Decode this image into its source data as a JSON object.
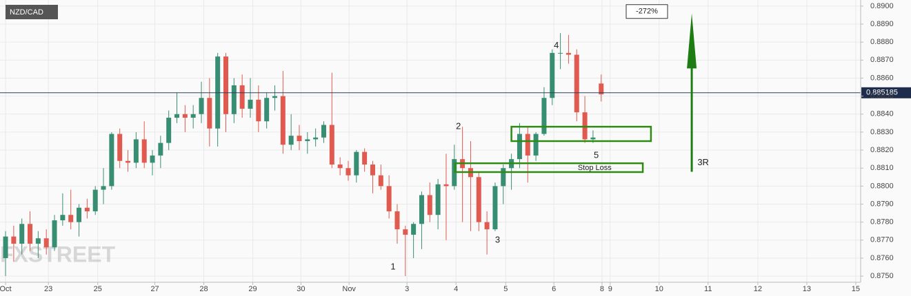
{
  "chart_data": {
    "type": "candlestick",
    "title": "NZD/CAD",
    "watermark": "FXSTREET",
    "up_color": "#388e73",
    "down_color": "#e05a4f",
    "zone_color": "#2e8b12",
    "grid": true,
    "xlim": [
      -0.68,
      104.8
    ],
    "ylim": [
      0.87466,
      0.89034
    ],
    "xticks": [
      {
        "value": 0,
        "label": "Oct"
      },
      {
        "value": 5.25,
        "label": "23"
      },
      {
        "value": 11.3,
        "label": "25"
      },
      {
        "value": 18.3,
        "label": "27"
      },
      {
        "value": 24.3,
        "label": "28"
      },
      {
        "value": 30.3,
        "label": "29"
      },
      {
        "value": 36.2,
        "label": "30"
      },
      {
        "value": 42.1,
        "label": "Nov"
      },
      {
        "value": 49.2,
        "label": "3"
      },
      {
        "value": 55.2,
        "label": "4"
      },
      {
        "value": 61.3,
        "label": "5"
      },
      {
        "value": 67.2,
        "label": "6"
      },
      {
        "value": 73.1,
        "label": "8"
      },
      {
        "value": 74.1,
        "label": "9"
      },
      {
        "value": 80.1,
        "label": "10"
      },
      {
        "value": 86.1,
        "label": "11"
      },
      {
        "value": 92.2,
        "label": "12"
      },
      {
        "value": 98.2,
        "label": "13"
      },
      {
        "value": 104.2,
        "label": "15"
      }
    ],
    "yticks": [
      {
        "value": 0.875,
        "label": "0.8750"
      },
      {
        "value": 0.876,
        "label": "0.8760"
      },
      {
        "value": 0.877,
        "label": "0.8770"
      },
      {
        "value": 0.878,
        "label": "0.8780"
      },
      {
        "value": 0.879,
        "label": "0.8790"
      },
      {
        "value": 0.88,
        "label": "0.8800"
      },
      {
        "value": 0.881,
        "label": "0.8810"
      },
      {
        "value": 0.882,
        "label": "0.8820"
      },
      {
        "value": 0.883,
        "label": "0.8830"
      },
      {
        "value": 0.884,
        "label": "0.8840"
      },
      {
        "value": 0.885,
        "label": "0.8850"
      },
      {
        "value": 0.886,
        "label": "0.8860"
      },
      {
        "value": 0.887,
        "label": "0.8870"
      },
      {
        "value": 0.888,
        "label": "0.8880"
      },
      {
        "value": 0.889,
        "label": "0.8890"
      },
      {
        "value": 0.89,
        "label": "0.8900"
      }
    ],
    "last_price": 0.885185,
    "candles": [
      [
        0.876,
        0.8775,
        0.875,
        0.8772
      ],
      [
        0.8772,
        0.8778,
        0.8758,
        0.8768
      ],
      [
        0.8768,
        0.8782,
        0.8762,
        0.8779
      ],
      [
        0.8779,
        0.8786,
        0.8764,
        0.8768
      ],
      [
        0.8768,
        0.8775,
        0.876,
        0.8771
      ],
      [
        0.8771,
        0.8776,
        0.8762,
        0.8766
      ],
      [
        0.8766,
        0.8784,
        0.8764,
        0.8781
      ],
      [
        0.8781,
        0.8796,
        0.8778,
        0.8784
      ],
      [
        0.8784,
        0.8798,
        0.8776,
        0.878
      ],
      [
        0.878,
        0.879,
        0.8772,
        0.8788
      ],
      [
        0.8788,
        0.8793,
        0.8782,
        0.8786
      ],
      [
        0.8786,
        0.88,
        0.8784,
        0.8798
      ],
      [
        0.8798,
        0.881,
        0.879,
        0.88
      ],
      [
        0.88,
        0.883,
        0.8798,
        0.8829
      ],
      [
        0.8829,
        0.8832,
        0.881,
        0.8814
      ],
      [
        0.8814,
        0.882,
        0.8808,
        0.8813
      ],
      [
        0.8813,
        0.883,
        0.881,
        0.8826
      ],
      [
        0.8826,
        0.8836,
        0.881,
        0.8813
      ],
      [
        0.8813,
        0.882,
        0.8806,
        0.8817
      ],
      [
        0.8817,
        0.8828,
        0.881,
        0.8824
      ],
      [
        0.8824,
        0.8842,
        0.882,
        0.8838
      ],
      [
        0.8838,
        0.8852,
        0.8835,
        0.884
      ],
      [
        0.884,
        0.8845,
        0.883,
        0.8838
      ],
      [
        0.8838,
        0.8845,
        0.8832,
        0.884
      ],
      [
        0.884,
        0.8858,
        0.8835,
        0.8849
      ],
      [
        0.8849,
        0.886,
        0.8822,
        0.8832
      ],
      [
        0.8832,
        0.8874,
        0.8822,
        0.8872
      ],
      [
        0.8872,
        0.8874,
        0.883,
        0.884
      ],
      [
        0.884,
        0.886,
        0.8835,
        0.8856
      ],
      [
        0.8856,
        0.8862,
        0.8838,
        0.8843
      ],
      [
        0.8843,
        0.886,
        0.8838,
        0.8848
      ],
      [
        0.8848,
        0.8856,
        0.883,
        0.8836
      ],
      [
        0.8836,
        0.8852,
        0.8832,
        0.8849
      ],
      [
        0.8849,
        0.8856,
        0.8842,
        0.885
      ],
      [
        0.885,
        0.8864,
        0.8818,
        0.8823
      ],
      [
        0.8823,
        0.884,
        0.882,
        0.8828
      ],
      [
        0.8828,
        0.8834,
        0.882,
        0.8825
      ],
      [
        0.8825,
        0.883,
        0.8818,
        0.8826
      ],
      [
        0.8826,
        0.8832,
        0.8822,
        0.8827
      ],
      [
        0.8827,
        0.8836,
        0.8824,
        0.8834
      ],
      [
        0.8834,
        0.8863,
        0.881,
        0.8812
      ],
      [
        0.8812,
        0.8816,
        0.8806,
        0.881
      ],
      [
        0.881,
        0.8814,
        0.8803,
        0.8806
      ],
      [
        0.8806,
        0.882,
        0.8802,
        0.8819
      ],
      [
        0.8819,
        0.8821,
        0.8808,
        0.8812
      ],
      [
        0.8812,
        0.8814,
        0.8796,
        0.8806
      ],
      [
        0.8806,
        0.8812,
        0.8798,
        0.88
      ],
      [
        0.88,
        0.8806,
        0.8782,
        0.8786
      ],
      [
        0.8786,
        0.879,
        0.8768,
        0.8776
      ],
      [
        0.8776,
        0.8778,
        0.875,
        0.8773
      ],
      [
        0.8773,
        0.878,
        0.876,
        0.8779
      ],
      [
        0.8779,
        0.8797,
        0.8765,
        0.8795
      ],
      [
        0.8795,
        0.8802,
        0.878,
        0.8784
      ],
      [
        0.8784,
        0.8804,
        0.8776,
        0.8801
      ],
      [
        0.8801,
        0.8818,
        0.877,
        0.88
      ],
      [
        0.88,
        0.8823,
        0.8798,
        0.8815
      ],
      [
        0.8815,
        0.8833,
        0.878,
        0.881
      ],
      [
        0.881,
        0.8825,
        0.8775,
        0.8805
      ],
      [
        0.8805,
        0.8808,
        0.8775,
        0.878
      ],
      [
        0.878,
        0.8786,
        0.8762,
        0.8776
      ],
      [
        0.8776,
        0.8802,
        0.8775,
        0.88
      ],
      [
        0.88,
        0.8812,
        0.879,
        0.881
      ],
      [
        0.881,
        0.8818,
        0.8798,
        0.8815
      ],
      [
        0.8815,
        0.8835,
        0.881,
        0.8829
      ],
      [
        0.8829,
        0.8833,
        0.8802,
        0.8817
      ],
      [
        0.8817,
        0.883,
        0.8814,
        0.8829
      ],
      [
        0.8829,
        0.8855,
        0.8828,
        0.8849
      ],
      [
        0.8849,
        0.8876,
        0.8845,
        0.8874
      ],
      [
        0.8874,
        0.8885,
        0.8865,
        0.8874
      ],
      [
        0.8874,
        0.8884,
        0.8868,
        0.8873
      ],
      [
        0.8873,
        0.8876,
        0.8836,
        0.8841
      ],
      [
        0.8841,
        0.885,
        0.8824,
        0.8826
      ],
      [
        0.8826,
        0.8831,
        0.8824,
        0.8827
      ],
      [
        0.8857,
        0.8862,
        0.8847,
        0.8851
      ]
    ],
    "zones": [
      {
        "x": [
          62,
          79.1
        ],
        "y": [
          0.8825,
          0.8833
        ]
      },
      {
        "x": [
          55.1,
          78.1
        ],
        "y": [
          0.88078,
          0.88127
        ]
      }
    ],
    "arrow": {
      "x": 84.1,
      "y": [
        0.8808,
        0.8896
      ]
    },
    "annotations": [
      {
        "text": "1",
        "x": 47.5,
        "y": 0.8755
      },
      {
        "text": "2",
        "x": 55.5,
        "y": 0.8833
      },
      {
        "text": "3",
        "x": 60.3,
        "y": 0.877
      },
      {
        "text": "4",
        "x": 67.5,
        "y": 0.8878
      },
      {
        "text": "5",
        "x": 72.4,
        "y": 0.8817
      },
      {
        "text": "Stop Loss",
        "x": 72.2,
        "y": 0.881
      },
      {
        "text": "3R",
        "x": 85.5,
        "y": 0.8813
      }
    ],
    "box_label": {
      "text": "-272%",
      "x": 78.6,
      "y": 0.8897
    }
  }
}
